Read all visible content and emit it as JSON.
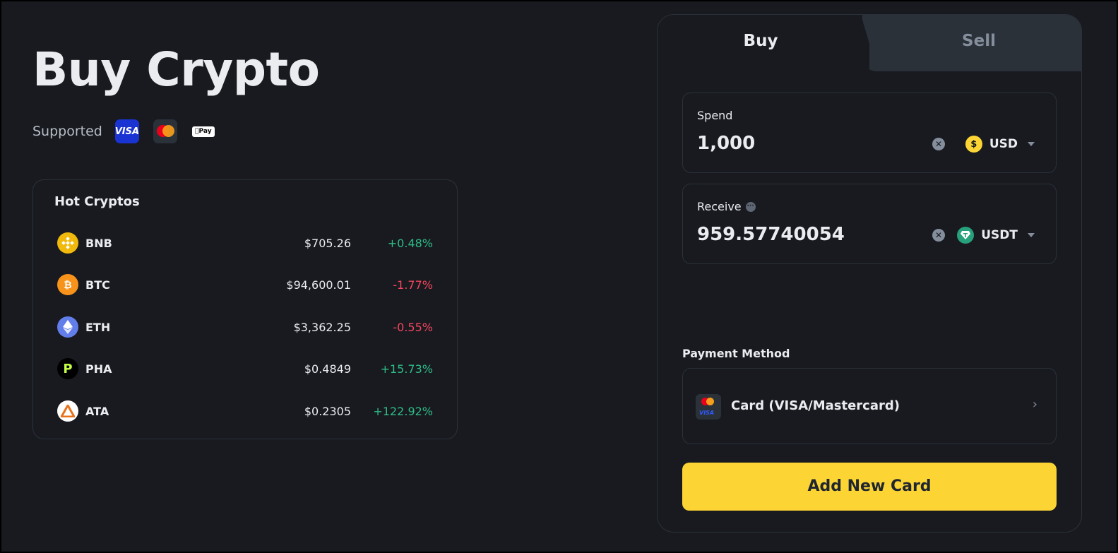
{
  "page_title": "Buy Crypto",
  "supported": {
    "label": "Supported",
    "methods": [
      "visa-logo",
      "mastercard-logo",
      "apple-pay-logo"
    ],
    "visa_text": "VISA",
    "apple_pay_text": "Pay"
  },
  "hot_cryptos": {
    "title": "Hot Cryptos",
    "rows": [
      {
        "symbol": "BNB",
        "price": "$705.26",
        "change": "+0.48%",
        "direction": "up",
        "icon": "bnb-icon",
        "color": "#f0b90b"
      },
      {
        "symbol": "BTC",
        "price": "$94,600.01",
        "change": "-1.77%",
        "direction": "down",
        "icon": "btc-icon",
        "color": "#f7931a"
      },
      {
        "symbol": "ETH",
        "price": "$3,362.25",
        "change": "-0.55%",
        "direction": "down",
        "icon": "eth-icon",
        "color": "#627eea"
      },
      {
        "symbol": "PHA",
        "price": "$0.4849",
        "change": "+15.73%",
        "direction": "up",
        "icon": "pha-icon",
        "color": "#000000"
      },
      {
        "symbol": "ATA",
        "price": "$0.2305",
        "change": "+122.92%",
        "direction": "up",
        "icon": "ata-icon",
        "color": "#ffffff"
      }
    ]
  },
  "trade": {
    "tabs": {
      "buy": "Buy",
      "sell": "Sell",
      "active": "buy"
    },
    "spend": {
      "label": "Spend",
      "value": "1,000",
      "currency": "USD",
      "currency_icon": "dollar-coin-icon"
    },
    "receive": {
      "label": "Receive",
      "value": "959.57740054",
      "currency": "USDT",
      "currency_icon": "tether-icon"
    },
    "payment_method": {
      "label": "Payment Method",
      "option": "Card (VISA/Mastercard)"
    },
    "add_card_button": "Add New Card"
  },
  "colors": {
    "background": "#181a20",
    "accent": "#fcd535",
    "up": "#2ebd85",
    "down": "#f6465d",
    "muted": "#848e9c"
  }
}
